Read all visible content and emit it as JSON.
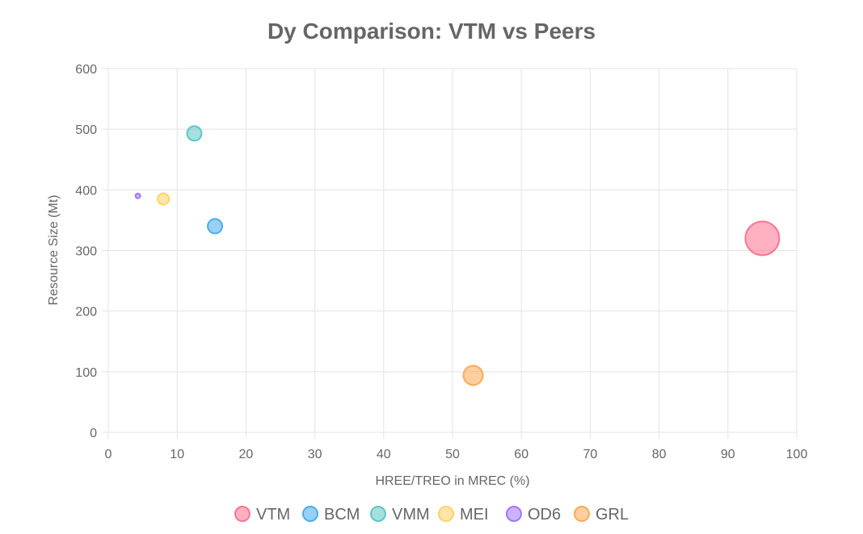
{
  "chart_data": {
    "type": "bubble",
    "title": "Dy Comparison: VTM vs Peers",
    "xlabel": "HREE/TREO in MREC (%)",
    "ylabel": "Resource Size (Mt)",
    "xlim": [
      0,
      100
    ],
    "ylim": [
      0,
      600
    ],
    "x_ticks": [
      0,
      10,
      20,
      30,
      40,
      50,
      60,
      70,
      80,
      90,
      100
    ],
    "y_ticks": [
      0,
      100,
      200,
      300,
      400,
      500,
      600
    ],
    "grid": true,
    "legend_position": "bottom",
    "series": [
      {
        "name": "VTM",
        "x": 95,
        "y": 320,
        "size": 10,
        "color": "#ff6384"
      },
      {
        "name": "BCM",
        "x": 15.5,
        "y": 340,
        "size": 4,
        "color": "#36a2eb"
      },
      {
        "name": "VMM",
        "x": 12.5,
        "y": 493,
        "size": 4,
        "color": "#4bc0c0"
      },
      {
        "name": "MEI",
        "x": 8,
        "y": 385,
        "size": 3,
        "color": "#ffcd56"
      },
      {
        "name": "OD6",
        "x": 4.3,
        "y": 390,
        "size": 1,
        "color": "#9966ff"
      },
      {
        "name": "GRL",
        "x": 53,
        "y": 94,
        "size": 5.5,
        "color": "#ff9f40"
      }
    ]
  }
}
